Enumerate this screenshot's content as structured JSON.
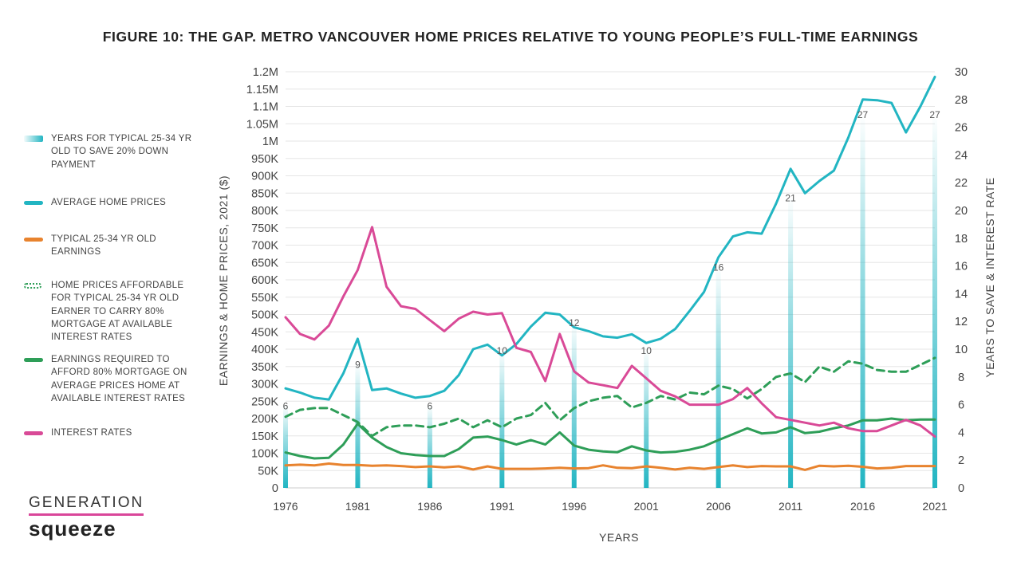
{
  "chart_data": {
    "type": "line",
    "title": "FIGURE 10: THE GAP. METRO VANCOUVER HOME PRICES RELATIVE TO YOUNG PEOPLE’S FULL-TIME EARNINGS",
    "xlabel": "YEARS",
    "ylabel_left": "EARNINGS & HOME PRICES, 2021 ($)",
    "ylabel_right": "YEARS TO SAVE & INTEREST RATE",
    "x_ticks": [
      "1976",
      "1981",
      "1986",
      "1991",
      "1996",
      "2001",
      "2006",
      "2011",
      "2016",
      "2021"
    ],
    "y_left_ticks": [
      "0",
      "50K",
      "100K",
      "150K",
      "200K",
      "250K",
      "300K",
      "350K",
      "400K",
      "450K",
      "500K",
      "550K",
      "600K",
      "650K",
      "700K",
      "750K",
      "800K",
      "850K",
      "900K",
      "950K",
      "1M",
      "1.05M",
      "1.1M",
      "1.15M",
      "1.2M"
    ],
    "y_right_ticks": [
      "0",
      "2",
      "4",
      "6",
      "8",
      "10",
      "12",
      "14",
      "16",
      "18",
      "20",
      "22",
      "24",
      "26",
      "28",
      "30"
    ],
    "ylim_left": [
      0,
      1200000
    ],
    "ylim_right": [
      0,
      30
    ],
    "xlim": [
      1976,
      2021
    ],
    "grid": "horizontal",
    "years": [
      1976,
      1977,
      1978,
      1979,
      1980,
      1981,
      1982,
      1983,
      1984,
      1985,
      1986,
      1987,
      1988,
      1989,
      1990,
      1991,
      1992,
      1993,
      1994,
      1995,
      1996,
      1997,
      1998,
      1999,
      2000,
      2001,
      2002,
      2003,
      2004,
      2005,
      2006,
      2007,
      2008,
      2009,
      2010,
      2011,
      2012,
      2013,
      2014,
      2015,
      2016,
      2017,
      2018,
      2019,
      2020,
      2021
    ],
    "series": [
      {
        "name": "AVERAGE HOME PRICES",
        "axis": "left",
        "color": "#22b5c2",
        "dash": false,
        "values": [
          287000,
          275000,
          260000,
          255000,
          330000,
          430000,
          282000,
          287000,
          272000,
          260000,
          265000,
          280000,
          325000,
          400000,
          413000,
          382000,
          415000,
          465000,
          505000,
          500000,
          463000,
          452000,
          437000,
          433000,
          443000,
          418000,
          430000,
          458000,
          510000,
          565000,
          665000,
          725000,
          737000,
          733000,
          820000,
          920000,
          850000,
          885000,
          915000,
          1010000,
          1120000,
          1118000,
          1110000,
          1025000,
          1100000,
          1185000
        ]
      },
      {
        "name": "TYPICAL 25-34 YR OLD EARNINGS",
        "axis": "left",
        "color": "#e8832e",
        "dash": false,
        "values": [
          65000,
          67000,
          65000,
          70000,
          66000,
          66000,
          64000,
          65000,
          63000,
          60000,
          62000,
          59000,
          62000,
          53000,
          62000,
          55000,
          55000,
          55000,
          56000,
          58000,
          56000,
          57000,
          65000,
          58000,
          57000,
          62000,
          58000,
          53000,
          58000,
          55000,
          60000,
          65000,
          60000,
          63000,
          62000,
          62000,
          52000,
          64000,
          62000,
          64000,
          61000,
          56000,
          58000,
          63000,
          63000,
          63000
        ]
      },
      {
        "name": "HOME PRICES AFFORDABLE FOR TYPICAL 25-34 YR OLD EARNER TO CARRY 80% MORTGAGE AT AVAILABLE INTEREST RATES",
        "axis": "left",
        "color": "#2e9e58",
        "dash": true,
        "values": [
          205000,
          225000,
          230000,
          230000,
          210000,
          190000,
          150000,
          175000,
          180000,
          180000,
          175000,
          185000,
          200000,
          175000,
          195000,
          175000,
          200000,
          210000,
          245000,
          195000,
          230000,
          250000,
          260000,
          265000,
          232000,
          245000,
          265000,
          255000,
          275000,
          270000,
          295000,
          285000,
          258000,
          285000,
          320000,
          330000,
          305000,
          350000,
          335000,
          365000,
          358000,
          340000,
          335000,
          335000,
          355000,
          375000
        ]
      },
      {
        "name": "EARNINGS REQUIRED TO AFFORD 80% MORTGAGE ON AVERAGE PRICES HOME AT AVAILABLE INTEREST RATES",
        "axis": "left",
        "color": "#2e9e58",
        "dash": false,
        "values": [
          102000,
          92000,
          85000,
          87000,
          125000,
          185000,
          145000,
          118000,
          100000,
          95000,
          92000,
          92000,
          112000,
          145000,
          148000,
          138000,
          125000,
          138000,
          125000,
          160000,
          122000,
          110000,
          105000,
          103000,
          120000,
          108000,
          102000,
          104000,
          110000,
          120000,
          138000,
          155000,
          172000,
          157000,
          160000,
          175000,
          158000,
          162000,
          172000,
          180000,
          195000,
          195000,
          200000,
          195000,
          197000,
          197000
        ]
      },
      {
        "name": "INTEREST RATES",
        "axis": "right",
        "color": "#d94a97",
        "dash": false,
        "values": [
          12.3,
          11.1,
          10.7,
          11.7,
          13.8,
          15.7,
          18.8,
          14.5,
          13.1,
          12.9,
          12.1,
          11.3,
          12.2,
          12.7,
          12.5,
          12.6,
          10.1,
          9.8,
          7.7,
          11.1,
          8.4,
          7.6,
          7.4,
          7.2,
          8.8,
          7.9,
          7.0,
          6.6,
          6.0,
          6.0,
          6.0,
          6.4,
          7.2,
          6.1,
          5.1,
          4.9,
          4.7,
          4.5,
          4.7,
          4.3,
          4.1,
          4.1,
          4.5,
          4.9,
          4.5,
          3.7
        ]
      },
      {
        "name": "YEARS FOR TYPICAL 25-34 YR OLD TO SAVE 20% DOWN PAYMENT",
        "axis": "right",
        "type": "bar",
        "color": "#22b5c2",
        "x": [
          1976,
          1981,
          1986,
          1991,
          1996,
          2001,
          2006,
          2011,
          2016,
          2021
        ],
        "values": [
          6,
          9,
          6,
          10,
          12,
          10,
          16,
          21,
          27,
          27
        ],
        "labels": [
          "6",
          "9",
          "6",
          "10",
          "12",
          "10",
          "16",
          "21",
          "27",
          "27"
        ]
      }
    ]
  },
  "legend": [
    {
      "label": "YEARS FOR TYPICAL 25-34 YR OLD TO SAVE 20% DOWN PAYMENT",
      "color": "#22b5c2",
      "style": "gradient"
    },
    {
      "label": "AVERAGE HOME PRICES",
      "color": "#22b5c2",
      "style": "solid"
    },
    {
      "label": "TYPICAL 25-34 YR OLD EARNINGS",
      "color": "#e8832e",
      "style": "solid"
    },
    {
      "label": "HOME PRICES AFFORDABLE FOR TYPICAL 25-34 YR OLD EARNER TO CARRY 80% MORTGAGE AT AVAILABLE INTEREST RATES",
      "color": "#2e9e58",
      "style": "dashed"
    },
    {
      "label": "EARNINGS REQUIRED TO AFFORD 80% MORTGAGE ON AVERAGE PRICES HOME AT AVAILABLE INTEREST RATES",
      "color": "#2e9e58",
      "style": "solid"
    },
    {
      "label": "INTEREST RATES",
      "color": "#d94a97",
      "style": "solid"
    }
  ],
  "logo": {
    "top": "GENERATION",
    "bottom": "squeeze",
    "accent": "#d9469a"
  }
}
